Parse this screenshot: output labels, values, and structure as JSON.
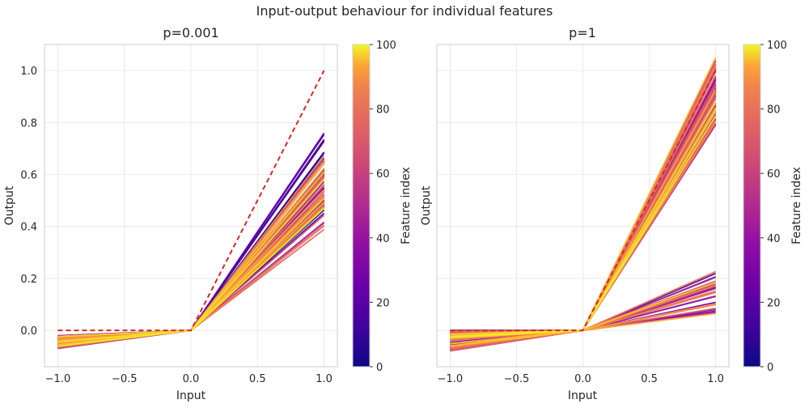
{
  "suptitle": "Input-output behaviour for individual features",
  "colors": {
    "dashed_reference": "#d62728",
    "grid": "#e6e6e6",
    "frame": "#cccccc"
  },
  "chart_data": [
    {
      "type": "line",
      "title": "p=0.001",
      "xlabel": "Input",
      "ylabel": "Output",
      "xlim": [
        -1.1,
        1.1
      ],
      "ylim": [
        -0.14,
        1.1
      ],
      "xticks": [
        -1.0,
        -0.5,
        0.0,
        0.5,
        1.0
      ],
      "xtick_labels": [
        "−1.0",
        "−0.5",
        "0.0",
        "0.5",
        "1.0"
      ],
      "yticks": [
        0.0,
        0.2,
        0.4,
        0.6,
        0.8,
        1.0
      ],
      "ytick_labels": [
        "0.0",
        "0.2",
        "0.4",
        "0.6",
        "0.8",
        "1.0"
      ],
      "grid": true,
      "x": [
        -1.0,
        0.0,
        1.0
      ],
      "reference_line": {
        "style": "dashed",
        "color": "#d62728",
        "y": [
          0.0,
          0.0,
          1.0
        ]
      },
      "feature_lines": {
        "count": 100,
        "colormap": "plasma",
        "colormap_range": [
          0,
          100
        ],
        "y_at_minus1_range": [
          -0.07,
          -0.02
        ],
        "y_at_0": 0.0,
        "y_at_1_range": [
          0.38,
          0.76
        ]
      },
      "colorbar": {
        "label": "Feature index",
        "range": [
          0,
          100
        ],
        "ticks": [
          0,
          20,
          40,
          60,
          80,
          100
        ],
        "tick_labels": [
          "0",
          "20",
          "40",
          "60",
          "80",
          "100"
        ]
      }
    },
    {
      "type": "line",
      "title": "p=1",
      "xlabel": "Input",
      "ylabel": "Output",
      "xlim": [
        -1.1,
        1.1
      ],
      "ylim": [
        -0.14,
        1.1
      ],
      "xticks": [
        -1.0,
        -0.5,
        0.0,
        0.5,
        1.0
      ],
      "xtick_labels": [
        "−1.0",
        "−0.5",
        "0.0",
        "0.5",
        "1.0"
      ],
      "grid": true,
      "x": [
        -1.0,
        0.0,
        1.0
      ],
      "reference_line": {
        "style": "dashed",
        "color": "#d62728",
        "y": [
          0.0,
          0.0,
          1.0
        ]
      },
      "feature_lines": {
        "count": 100,
        "colormap": "plasma",
        "colormap_range": [
          0,
          100
        ],
        "y_at_minus1_range": [
          -0.08,
          0.0
        ],
        "y_at_0": 0.0,
        "groups": [
          {
            "description": "high-slope features",
            "y_at_1_range": [
              0.79,
              1.05
            ]
          },
          {
            "description": "low-slope features",
            "y_at_1_range": [
              0.06,
              0.23
            ]
          }
        ]
      },
      "colorbar": {
        "label": "Feature index",
        "range": [
          0,
          100
        ],
        "ticks": [
          0,
          20,
          40,
          60,
          80,
          100
        ],
        "tick_labels": [
          "0",
          "20",
          "40",
          "60",
          "80",
          "100"
        ]
      }
    }
  ]
}
